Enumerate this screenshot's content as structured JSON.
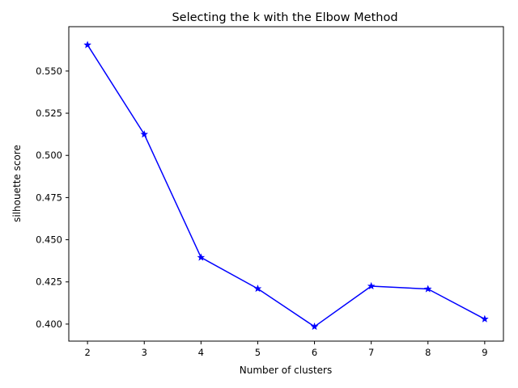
{
  "chart_data": {
    "type": "line",
    "title": "Selecting the k with the Elbow Method",
    "xlabel": "Number of clusters",
    "ylabel": "silhouette score",
    "x": [
      2,
      3,
      4,
      5,
      6,
      7,
      8,
      9
    ],
    "values": [
      0.5655,
      0.5125,
      0.4395,
      0.421,
      0.3985,
      0.4225,
      0.4208,
      0.403
    ],
    "xlim": [
      1.67,
      9.33
    ],
    "ylim": [
      0.3899,
      0.5763
    ],
    "xticks": [
      2,
      3,
      4,
      5,
      6,
      7,
      8,
      9
    ],
    "yticks": [
      0.4,
      0.425,
      0.45,
      0.475,
      0.5,
      0.525,
      0.55
    ],
    "ytick_labels": [
      "0.400",
      "0.425",
      "0.450",
      "0.475",
      "0.500",
      "0.525",
      "0.550"
    ],
    "line_color": "#0000ff",
    "marker": "star",
    "grid": false,
    "legend": "none"
  }
}
